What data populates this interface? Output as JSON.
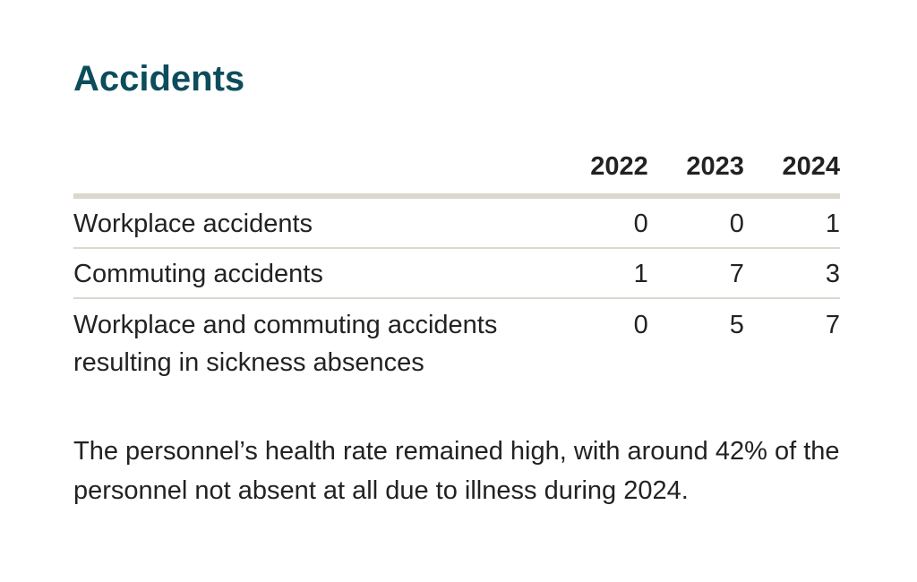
{
  "title": "Accidents",
  "table": {
    "headers": [
      "",
      "2022",
      "2023",
      "2024"
    ],
    "rows": [
      {
        "label": "Workplace accidents",
        "values": [
          "0",
          "0",
          "1"
        ]
      },
      {
        "label": "Commuting accidents",
        "values": [
          "1",
          "7",
          "3"
        ]
      },
      {
        "label": "Workplace and commuting accidents resulting in sickness absences",
        "values": [
          "0",
          "5",
          "7"
        ]
      }
    ]
  },
  "note": "The personnel’s health rate remained high, with around 42% of the personnel not absent at all due to illness during 2024.",
  "colors": {
    "title": "#0c4d5c",
    "text": "#222222",
    "rule": "#dcd7cf"
  }
}
